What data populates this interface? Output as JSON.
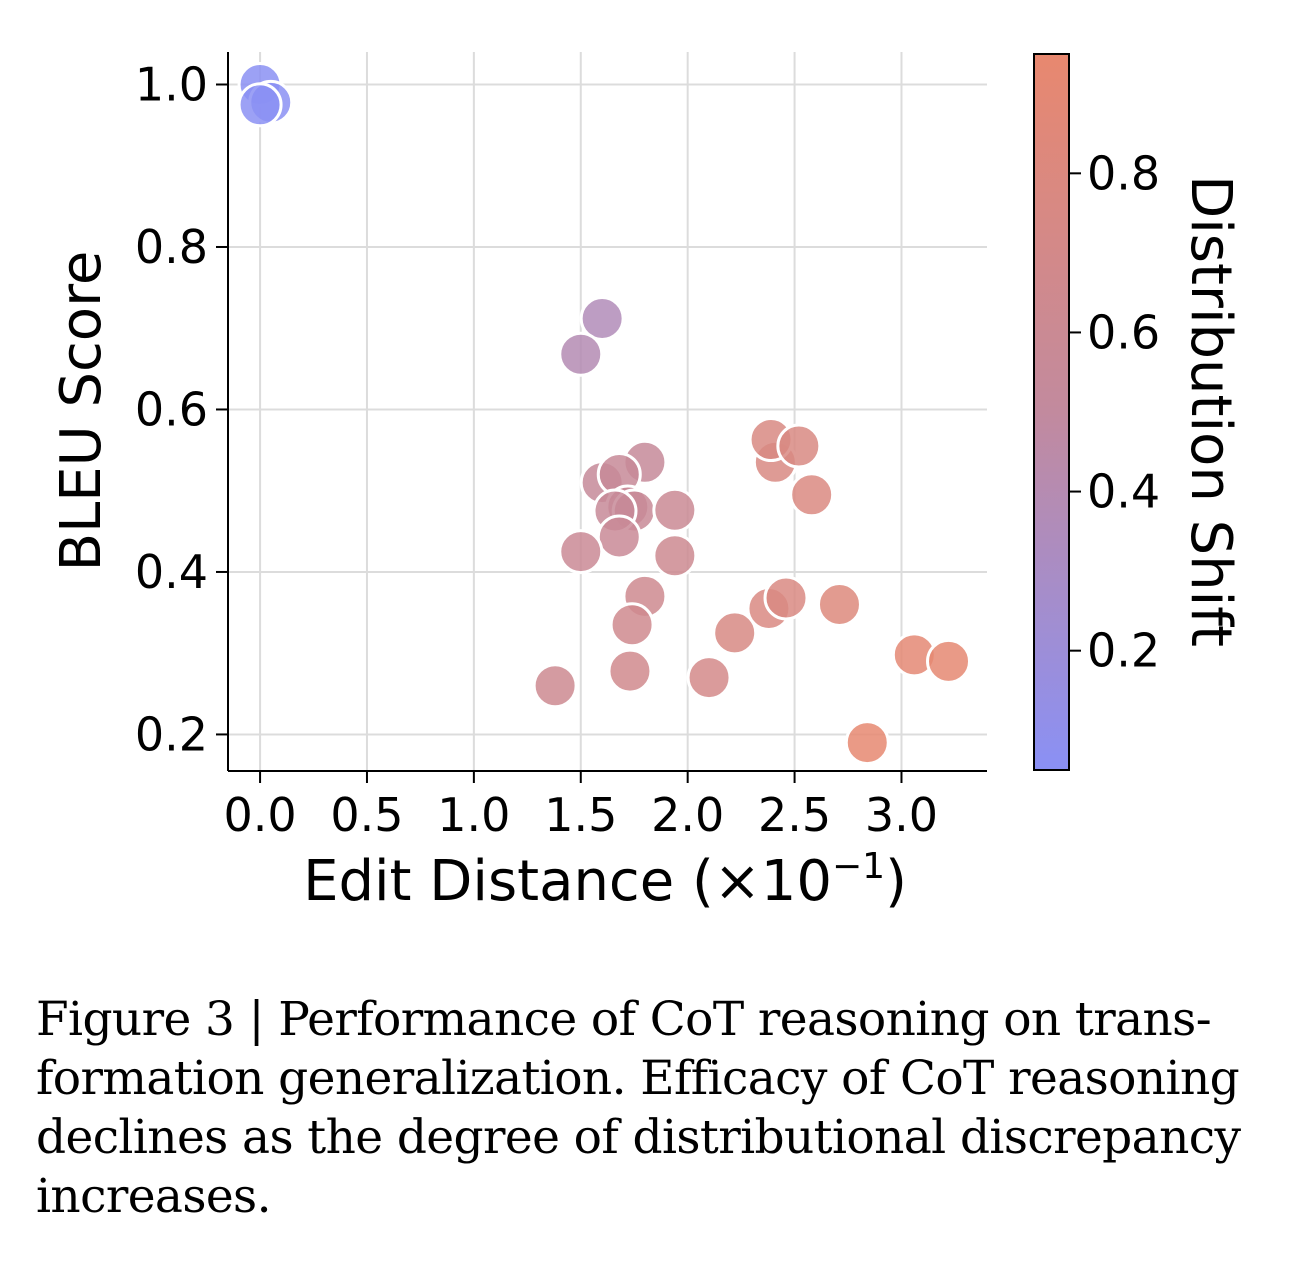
{
  "chart_data": {
    "type": "scatter",
    "title": "",
    "xlabel": "Edit Distance (×10",
    "xlabel_exponent": "−1",
    "xlabel_close": ")",
    "ylabel": "BLEU Score",
    "xlim": [
      -0.15,
      3.4
    ],
    "ylim": [
      0.155,
      1.04
    ],
    "xticks": [
      0.0,
      0.5,
      1.0,
      1.5,
      2.0,
      2.5,
      3.0
    ],
    "xtick_labels": [
      "0.0",
      "0.5",
      "1.0",
      "1.5",
      "2.0",
      "2.5",
      "3.0"
    ],
    "yticks": [
      0.2,
      0.4,
      0.6,
      0.8,
      1.0
    ],
    "ytick_labels": [
      "0.2",
      "0.4",
      "0.6",
      "0.8",
      "1.0"
    ],
    "grid": true,
    "colorbar": {
      "label": "Distribution Shift",
      "range": [
        0.05,
        0.95
      ],
      "ticks": [
        0.2,
        0.4,
        0.6,
        0.8
      ],
      "tick_labels": [
        "0.2",
        "0.4",
        "0.6",
        "0.8"
      ],
      "low_color": "#8a90f5",
      "mid_color": "#c28a9e",
      "high_color": "#e8886f"
    },
    "points": [
      {
        "x": 0.0,
        "y": 1.0,
        "shift": 0.06
      },
      {
        "x": 0.05,
        "y": 0.978,
        "shift": 0.06
      },
      {
        "x": 0.0,
        "y": 0.975,
        "shift": 0.06
      },
      {
        "x": 1.6,
        "y": 0.712,
        "shift": 0.36
      },
      {
        "x": 1.5,
        "y": 0.668,
        "shift": 0.39
      },
      {
        "x": 1.8,
        "y": 0.535,
        "shift": 0.55
      },
      {
        "x": 1.6,
        "y": 0.51,
        "shift": 0.55
      },
      {
        "x": 1.68,
        "y": 0.52,
        "shift": 0.56
      },
      {
        "x": 1.72,
        "y": 0.48,
        "shift": 0.57
      },
      {
        "x": 1.75,
        "y": 0.475,
        "shift": 0.57
      },
      {
        "x": 1.66,
        "y": 0.475,
        "shift": 0.56
      },
      {
        "x": 1.94,
        "y": 0.476,
        "shift": 0.6
      },
      {
        "x": 1.68,
        "y": 0.443,
        "shift": 0.58
      },
      {
        "x": 1.5,
        "y": 0.425,
        "shift": 0.59
      },
      {
        "x": 1.94,
        "y": 0.42,
        "shift": 0.62
      },
      {
        "x": 1.8,
        "y": 0.37,
        "shift": 0.64
      },
      {
        "x": 1.74,
        "y": 0.335,
        "shift": 0.65
      },
      {
        "x": 1.73,
        "y": 0.278,
        "shift": 0.66
      },
      {
        "x": 1.38,
        "y": 0.26,
        "shift": 0.62
      },
      {
        "x": 2.1,
        "y": 0.27,
        "shift": 0.7
      },
      {
        "x": 2.22,
        "y": 0.325,
        "shift": 0.75
      },
      {
        "x": 2.38,
        "y": 0.355,
        "shift": 0.77
      },
      {
        "x": 2.46,
        "y": 0.368,
        "shift": 0.77
      },
      {
        "x": 2.41,
        "y": 0.535,
        "shift": 0.76
      },
      {
        "x": 2.39,
        "y": 0.563,
        "shift": 0.76
      },
      {
        "x": 2.52,
        "y": 0.555,
        "shift": 0.76
      },
      {
        "x": 2.58,
        "y": 0.495,
        "shift": 0.78
      },
      {
        "x": 2.71,
        "y": 0.36,
        "shift": 0.82
      },
      {
        "x": 3.06,
        "y": 0.298,
        "shift": 0.9
      },
      {
        "x": 3.22,
        "y": 0.29,
        "shift": 0.92
      },
      {
        "x": 2.84,
        "y": 0.19,
        "shift": 0.93
      }
    ]
  },
  "caption": {
    "figure_label": "Figure 3 | Performance of CoT reasoning on trans-",
    "line2": "formation generalization. Efficacy of CoT reasoning",
    "line3": "declines as the degree of distributional discrepancy",
    "line4": "increases."
  }
}
